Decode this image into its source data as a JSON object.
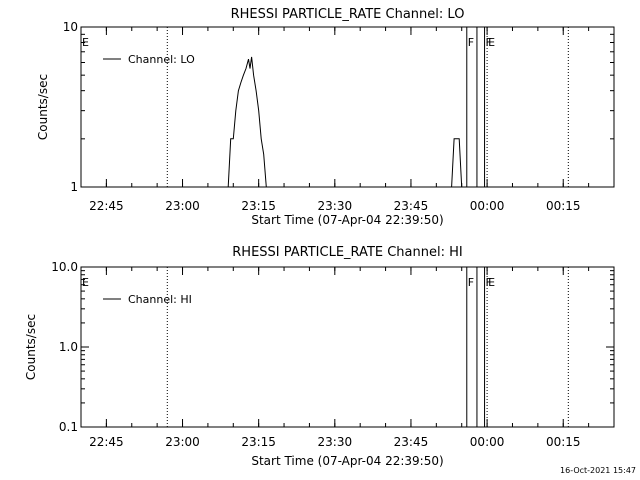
{
  "footer": {
    "timestamp": "16-Oct-2021 15:47"
  },
  "chart_data": [
    {
      "type": "line",
      "title": "RHESSI PARTICLE_RATE Channel: LO",
      "xlabel": "Start Time (07-Apr-04 22:39:50)",
      "ylabel": "Counts/sec",
      "yscale": "log",
      "xlim": [
        "22:40",
        "00:25"
      ],
      "ylim": [
        1,
        10
      ],
      "x_ticks": [
        "22:45",
        "23:00",
        "23:15",
        "23:30",
        "23:45",
        "00:00",
        "00:15"
      ],
      "y_ticks": [
        "1",
        "10"
      ],
      "legend": {
        "label": "Channel: LO",
        "position": "top-left"
      },
      "flag_lines": [
        {
          "time": "22:39:50",
          "style": "dotted",
          "label": "E"
        },
        {
          "time": "22:57",
          "style": "dotted",
          "label": ""
        },
        {
          "time": "23:56",
          "style": "solid",
          "label": "F"
        },
        {
          "time": "23:58",
          "style": "solid",
          "label": ""
        },
        {
          "time": "23:59.5",
          "style": "solid",
          "label": "F"
        },
        {
          "time": "00:00",
          "style": "dotted",
          "label": "E"
        },
        {
          "time": "00:16",
          "style": "dotted",
          "label": ""
        }
      ],
      "series": [
        {
          "name": "Channel: LO",
          "segments": [
            [
              [
                "23:09",
                1
              ],
              [
                "23:09.5",
                2
              ],
              [
                "23:10",
                2
              ],
              [
                "23:10.5",
                3
              ],
              [
                "23:11",
                4
              ],
              [
                "23:11.5",
                4.5
              ],
              [
                "23:12",
                5
              ],
              [
                "23:12.5",
                5.5
              ],
              [
                "23:13",
                6.3
              ],
              [
                "23:13.3",
                5.5
              ],
              [
                "23:13.6",
                6.5
              ],
              [
                "23:14",
                5
              ],
              [
                "23:14.5",
                4
              ],
              [
                "23:15",
                3
              ],
              [
                "23:15.5",
                2
              ],
              [
                "23:16",
                1.6
              ],
              [
                "23:16.5",
                1
              ]
            ],
            [
              [
                "23:53",
                1
              ],
              [
                "23:53.5",
                2
              ],
              [
                "23:54.5",
                2
              ],
              [
                "23:55",
                1
              ]
            ]
          ]
        }
      ]
    },
    {
      "type": "line",
      "title": "RHESSI PARTICLE_RATE Channel: HI",
      "xlabel": "Start Time (07-Apr-04 22:39:50)",
      "ylabel": "Counts/sec",
      "yscale": "log",
      "xlim": [
        "22:40",
        "00:25"
      ],
      "ylim": [
        0.1,
        10
      ],
      "x_ticks": [
        "22:45",
        "23:00",
        "23:15",
        "23:30",
        "23:45",
        "00:00",
        "00:15"
      ],
      "y_ticks": [
        "0.1",
        "1.0",
        "10.0"
      ],
      "legend": {
        "label": "Channel: HI",
        "position": "top-left"
      },
      "flag_lines": [
        {
          "time": "22:39:50",
          "style": "dotted",
          "label": "E"
        },
        {
          "time": "22:57",
          "style": "dotted",
          "label": ""
        },
        {
          "time": "23:56",
          "style": "solid",
          "label": "F"
        },
        {
          "time": "23:58",
          "style": "solid",
          "label": ""
        },
        {
          "time": "23:59.5",
          "style": "solid",
          "label": "F"
        },
        {
          "time": "00:00",
          "style": "dotted",
          "label": "E"
        },
        {
          "time": "00:16",
          "style": "dotted",
          "label": ""
        }
      ],
      "series": [
        {
          "name": "Channel: HI",
          "segments": []
        }
      ]
    }
  ]
}
